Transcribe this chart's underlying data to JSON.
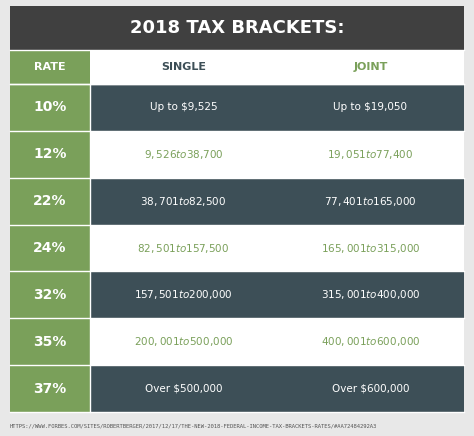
{
  "title": "2018 TAX BRACKETS:",
  "header_bg": "#404040",
  "title_color": "#ffffff",
  "green_col_bg": "#7aa05a",
  "dark_row_bg": "#3d4f57",
  "light_row_bg": "#ffffff",
  "outer_bg": "#e8e8e8",
  "footer_url": "HTTPS://WWW.FORBES.COM/SITES/ROBERTBERGER/2017/12/17/THE-NEW-2018-FEDERAL-INCOME-TAX-BRACKETS-RATES/#AA72484292A3",
  "col_headers": [
    "RATE",
    "SINGLE",
    "JOINT"
  ],
  "col_header_colors": [
    "#ffffff",
    "#3d4f57",
    "#7aa05a"
  ],
  "rows": [
    {
      "rate": "10%",
      "single": "Up to $9,525",
      "joint": "Up to $19,050",
      "style": "dark"
    },
    {
      "rate": "12%",
      "single": "$9,526 to $38,700",
      "joint": "$19,051 to $77,400",
      "style": "light"
    },
    {
      "rate": "22%",
      "single": "$38,701 to $82,500",
      "joint": "$77,401 to $165,000",
      "style": "dark"
    },
    {
      "rate": "24%",
      "single": "$82,501 to $157,500",
      "joint": "$165,001 to $315,000",
      "style": "light"
    },
    {
      "rate": "32%",
      "single": "$157,501 to $200,000",
      "joint": "$315,001 to $400,000",
      "style": "dark"
    },
    {
      "rate": "35%",
      "single": "$200,001 to $500,000",
      "joint": "$400,001 to $600,000",
      "style": "light"
    },
    {
      "rate": "37%",
      "single": "Over $500,000",
      "joint": "Over $600,000",
      "style": "dark"
    }
  ],
  "dark_text_color": "#ffffff",
  "light_text_color": "#7aa05a",
  "rate_text_color": "#ffffff",
  "title_fontsize": 13,
  "header_fontsize": 8,
  "row_fontsize": 7.5,
  "rate_fontsize": 10,
  "footer_fontsize": 4.0
}
